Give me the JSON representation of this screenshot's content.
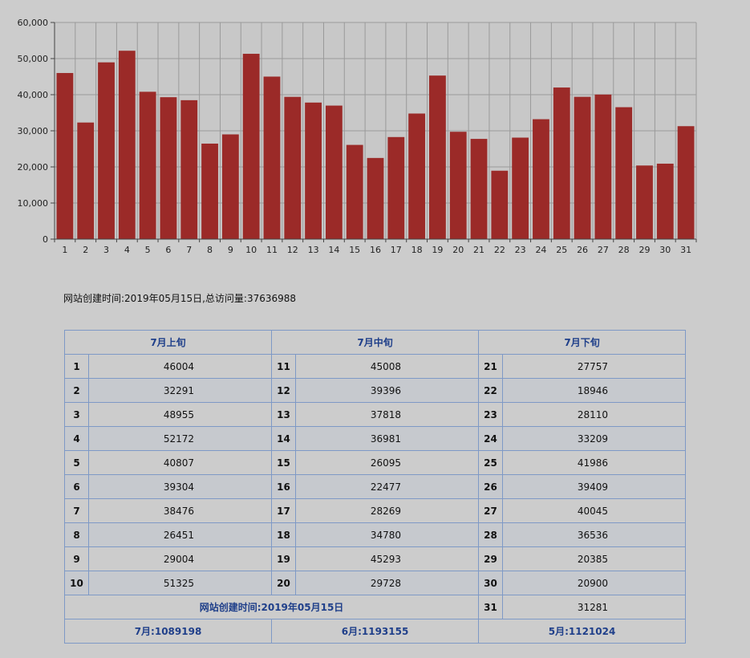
{
  "chart_data": {
    "type": "bar",
    "categories": [
      "1",
      "2",
      "3",
      "4",
      "5",
      "6",
      "7",
      "8",
      "9",
      "10",
      "11",
      "12",
      "13",
      "14",
      "15",
      "16",
      "17",
      "18",
      "19",
      "20",
      "21",
      "22",
      "23",
      "24",
      "25",
      "26",
      "27",
      "28",
      "29",
      "30",
      "31"
    ],
    "values": [
      46004,
      32291,
      48955,
      52172,
      40807,
      39304,
      38476,
      26451,
      29004,
      51325,
      45008,
      39396,
      37818,
      36981,
      26095,
      22477,
      28269,
      34780,
      45293,
      29728,
      27757,
      18946,
      28110,
      33209,
      41986,
      39409,
      40045,
      36536,
      20385,
      20900,
      31281
    ],
    "yticks": [
      "0",
      "10,000",
      "20,000",
      "30,000",
      "40,000",
      "50,000",
      "60,000"
    ],
    "ylim": [
      0,
      60000
    ],
    "grid": true,
    "bar_color": "#9b2a28"
  },
  "summary": "网站创建时间:2019年05月15日,总访问量:37636988",
  "table": {
    "headers": [
      "7月上旬",
      "7月中旬",
      "7月下旬"
    ],
    "rows": [
      {
        "d1": "1",
        "v1": "46004",
        "d2": "11",
        "v2": "45008",
        "d3": "21",
        "v3": "27757"
      },
      {
        "d1": "2",
        "v1": "32291",
        "d2": "12",
        "v2": "39396",
        "d3": "22",
        "v3": "18946"
      },
      {
        "d1": "3",
        "v1": "48955",
        "d2": "13",
        "v2": "37818",
        "d3": "23",
        "v3": "28110"
      },
      {
        "d1": "4",
        "v1": "52172",
        "d2": "14",
        "v2": "36981",
        "d3": "24",
        "v3": "33209"
      },
      {
        "d1": "5",
        "v1": "40807",
        "d2": "15",
        "v2": "26095",
        "d3": "25",
        "v3": "41986"
      },
      {
        "d1": "6",
        "v1": "39304",
        "d2": "16",
        "v2": "22477",
        "d3": "26",
        "v3": "39409"
      },
      {
        "d1": "7",
        "v1": "38476",
        "d2": "17",
        "v2": "28269",
        "d3": "27",
        "v3": "40045"
      },
      {
        "d1": "8",
        "v1": "26451",
        "d2": "18",
        "v2": "34780",
        "d3": "28",
        "v3": "36536"
      },
      {
        "d1": "9",
        "v1": "29004",
        "d2": "19",
        "v2": "45293",
        "d3": "29",
        "v3": "20385"
      },
      {
        "d1": "10",
        "v1": "51325",
        "d2": "20",
        "v2": "29728",
        "d3": "30",
        "v3": "20900"
      }
    ],
    "created_label": "网站创建时间:2019年05月15日",
    "last_day": "31",
    "last_value": "31281",
    "month_totals": [
      "7月:1089198",
      "6月:1193155",
      "5月:1121024"
    ]
  }
}
